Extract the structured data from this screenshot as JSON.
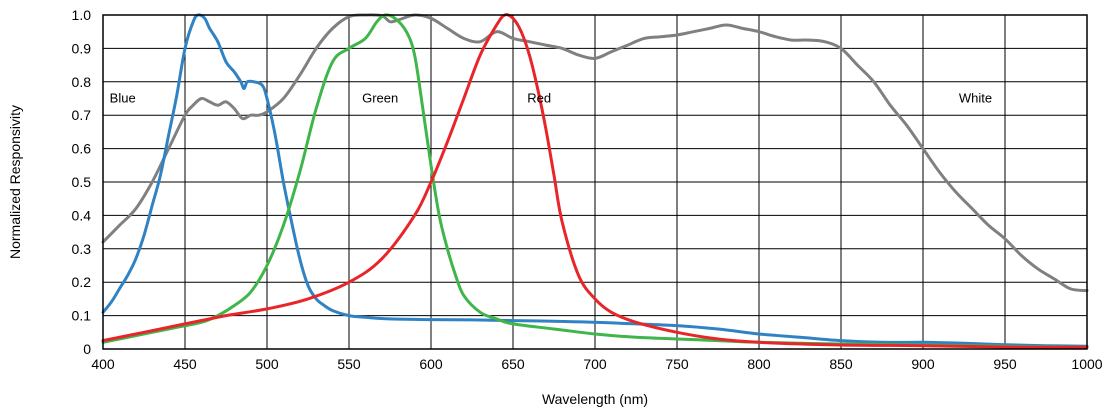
{
  "chart_data": {
    "type": "line",
    "xlabel": "Wavelength (nm)",
    "ylabel": "Normalized Responsivity",
    "xlim": [
      400,
      1000
    ],
    "ylim": [
      0,
      1.0
    ],
    "xticks": [
      "400",
      "450",
      "500",
      "550",
      "600",
      "650",
      "700",
      "750",
      "800",
      "850",
      "900",
      "950",
      "1000"
    ],
    "yticks": [
      "0",
      "0.1",
      "0.2",
      "0.3",
      "0.4",
      "0.5",
      "0.6",
      "0.7",
      "0.8",
      "0.9",
      "1.0"
    ],
    "grid": true,
    "series": [
      {
        "name": "White",
        "color": "#808080",
        "label_at": [
          932,
          0.75
        ],
        "points": [
          [
            400,
            0.32
          ],
          [
            410,
            0.37
          ],
          [
            420,
            0.42
          ],
          [
            430,
            0.5
          ],
          [
            440,
            0.6
          ],
          [
            450,
            0.7
          ],
          [
            455,
            0.73
          ],
          [
            460,
            0.75
          ],
          [
            465,
            0.74
          ],
          [
            470,
            0.73
          ],
          [
            475,
            0.74
          ],
          [
            480,
            0.72
          ],
          [
            485,
            0.69
          ],
          [
            490,
            0.7
          ],
          [
            495,
            0.7
          ],
          [
            500,
            0.71
          ],
          [
            510,
            0.75
          ],
          [
            520,
            0.82
          ],
          [
            530,
            0.9
          ],
          [
            540,
            0.96
          ],
          [
            550,
            0.995
          ],
          [
            560,
            1.0
          ],
          [
            570,
            0.998
          ],
          [
            575,
            0.98
          ],
          [
            580,
            0.985
          ],
          [
            590,
            1.0
          ],
          [
            600,
            0.99
          ],
          [
            610,
            0.96
          ],
          [
            620,
            0.93
          ],
          [
            630,
            0.92
          ],
          [
            640,
            0.95
          ],
          [
            650,
            0.93
          ],
          [
            660,
            0.92
          ],
          [
            670,
            0.91
          ],
          [
            680,
            0.9
          ],
          [
            690,
            0.88
          ],
          [
            700,
            0.87
          ],
          [
            710,
            0.89
          ],
          [
            720,
            0.91
          ],
          [
            730,
            0.93
          ],
          [
            740,
            0.935
          ],
          [
            750,
            0.94
          ],
          [
            760,
            0.95
          ],
          [
            770,
            0.96
          ],
          [
            780,
            0.97
          ],
          [
            790,
            0.96
          ],
          [
            800,
            0.95
          ],
          [
            810,
            0.935
          ],
          [
            820,
            0.925
          ],
          [
            830,
            0.925
          ],
          [
            840,
            0.92
          ],
          [
            850,
            0.9
          ],
          [
            860,
            0.85
          ],
          [
            870,
            0.8
          ],
          [
            880,
            0.73
          ],
          [
            890,
            0.67
          ],
          [
            900,
            0.6
          ],
          [
            910,
            0.53
          ],
          [
            920,
            0.47
          ],
          [
            930,
            0.42
          ],
          [
            940,
            0.37
          ],
          [
            950,
            0.33
          ],
          [
            960,
            0.28
          ],
          [
            970,
            0.24
          ],
          [
            980,
            0.21
          ],
          [
            990,
            0.18
          ],
          [
            1000,
            0.175
          ]
        ]
      },
      {
        "name": "Blue",
        "color": "#2f83c4",
        "label_at": [
          412,
          0.75
        ],
        "points": [
          [
            400,
            0.11
          ],
          [
            405,
            0.14
          ],
          [
            410,
            0.18
          ],
          [
            415,
            0.22
          ],
          [
            420,
            0.27
          ],
          [
            425,
            0.34
          ],
          [
            430,
            0.43
          ],
          [
            435,
            0.52
          ],
          [
            440,
            0.64
          ],
          [
            445,
            0.76
          ],
          [
            450,
            0.9
          ],
          [
            455,
            0.98
          ],
          [
            458,
            1.0
          ],
          [
            462,
            0.99
          ],
          [
            465,
            0.96
          ],
          [
            470,
            0.92
          ],
          [
            475,
            0.86
          ],
          [
            480,
            0.83
          ],
          [
            484,
            0.8
          ],
          [
            486,
            0.78
          ],
          [
            488,
            0.8
          ],
          [
            492,
            0.8
          ],
          [
            497,
            0.79
          ],
          [
            500,
            0.75
          ],
          [
            505,
            0.64
          ],
          [
            510,
            0.5
          ],
          [
            515,
            0.38
          ],
          [
            520,
            0.27
          ],
          [
            525,
            0.19
          ],
          [
            530,
            0.15
          ],
          [
            535,
            0.13
          ],
          [
            540,
            0.115
          ],
          [
            550,
            0.1
          ],
          [
            560,
            0.095
          ],
          [
            575,
            0.09
          ],
          [
            600,
            0.088
          ],
          [
            625,
            0.087
          ],
          [
            650,
            0.085
          ],
          [
            675,
            0.083
          ],
          [
            700,
            0.08
          ],
          [
            725,
            0.075
          ],
          [
            750,
            0.07
          ],
          [
            775,
            0.06
          ],
          [
            800,
            0.045
          ],
          [
            825,
            0.035
          ],
          [
            850,
            0.025
          ],
          [
            875,
            0.02
          ],
          [
            900,
            0.02
          ],
          [
            925,
            0.017
          ],
          [
            950,
            0.013
          ],
          [
            975,
            0.01
          ],
          [
            1000,
            0.008
          ]
        ]
      },
      {
        "name": "Green",
        "color": "#3fb54a",
        "label_at": [
          569,
          0.75
        ],
        "points": [
          [
            400,
            0.02
          ],
          [
            420,
            0.04
          ],
          [
            440,
            0.06
          ],
          [
            460,
            0.08
          ],
          [
            470,
            0.1
          ],
          [
            480,
            0.13
          ],
          [
            490,
            0.17
          ],
          [
            500,
            0.25
          ],
          [
            510,
            0.37
          ],
          [
            520,
            0.53
          ],
          [
            530,
            0.72
          ],
          [
            540,
            0.86
          ],
          [
            550,
            0.9
          ],
          [
            560,
            0.93
          ],
          [
            567,
            0.98
          ],
          [
            572,
            1.0
          ],
          [
            578,
            0.99
          ],
          [
            585,
            0.95
          ],
          [
            590,
            0.88
          ],
          [
            595,
            0.72
          ],
          [
            600,
            0.55
          ],
          [
            605,
            0.4
          ],
          [
            610,
            0.3
          ],
          [
            615,
            0.22
          ],
          [
            620,
            0.16
          ],
          [
            630,
            0.11
          ],
          [
            640,
            0.09
          ],
          [
            650,
            0.075
          ],
          [
            675,
            0.06
          ],
          [
            700,
            0.045
          ],
          [
            725,
            0.035
          ],
          [
            750,
            0.03
          ],
          [
            775,
            0.025
          ],
          [
            800,
            0.02
          ],
          [
            850,
            0.015
          ],
          [
            900,
            0.012
          ],
          [
            950,
            0.008
          ],
          [
            1000,
            0.005
          ]
        ]
      },
      {
        "name": "Red",
        "color": "#e8262a",
        "label_at": [
          666,
          0.75
        ],
        "points": [
          [
            400,
            0.025
          ],
          [
            425,
            0.05
          ],
          [
            450,
            0.075
          ],
          [
            475,
            0.1
          ],
          [
            500,
            0.12
          ],
          [
            525,
            0.15
          ],
          [
            550,
            0.2
          ],
          [
            570,
            0.27
          ],
          [
            590,
            0.4
          ],
          [
            600,
            0.5
          ],
          [
            610,
            0.62
          ],
          [
            620,
            0.75
          ],
          [
            630,
            0.88
          ],
          [
            640,
            0.97
          ],
          [
            645,
            1.0
          ],
          [
            650,
            0.99
          ],
          [
            655,
            0.95
          ],
          [
            660,
            0.88
          ],
          [
            665,
            0.78
          ],
          [
            670,
            0.66
          ],
          [
            675,
            0.52
          ],
          [
            680,
            0.38
          ],
          [
            690,
            0.22
          ],
          [
            700,
            0.15
          ],
          [
            710,
            0.11
          ],
          [
            725,
            0.08
          ],
          [
            750,
            0.05
          ],
          [
            775,
            0.03
          ],
          [
            800,
            0.02
          ],
          [
            850,
            0.012
          ],
          [
            900,
            0.01
          ],
          [
            950,
            0.006
          ],
          [
            1000,
            0.005
          ]
        ]
      }
    ]
  }
}
